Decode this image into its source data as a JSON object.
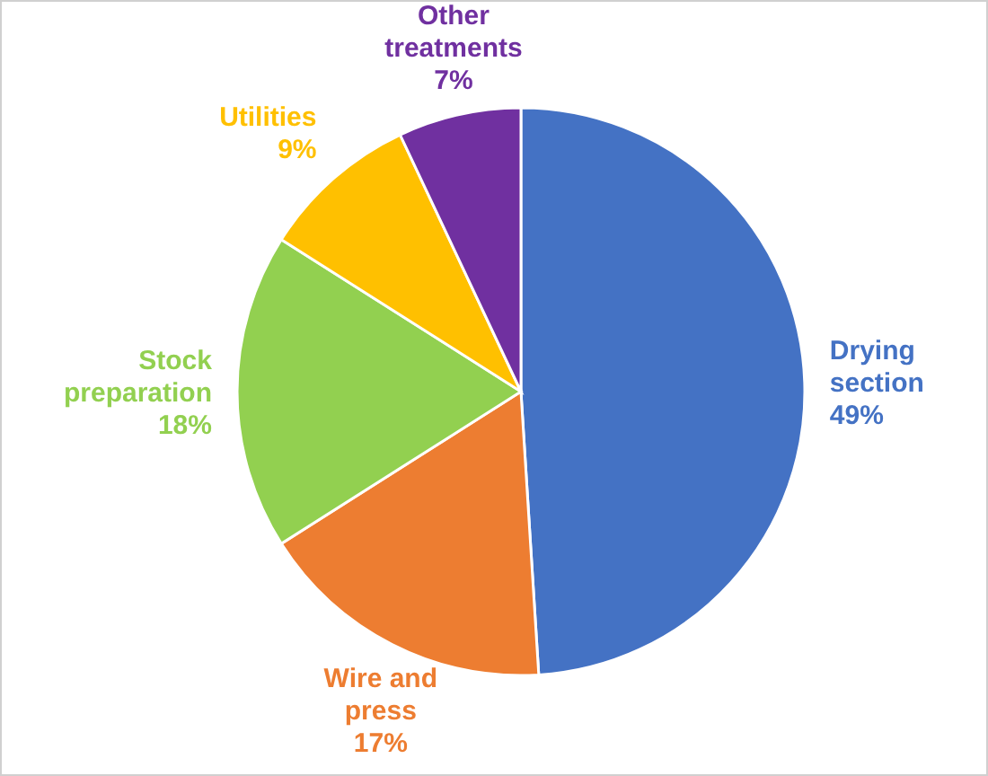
{
  "chart_data": {
    "type": "pie",
    "categories": [
      "Drying section",
      "Wire and press",
      "Stock preparation",
      "Utilities",
      "Other treatments"
    ],
    "values": [
      49,
      17,
      18,
      9,
      7
    ],
    "colors": [
      "#4472c4",
      "#ed7d31",
      "#92d050",
      "#ffc000",
      "#7030a0"
    ],
    "value_labels": [
      "49%",
      "17%",
      "18%",
      "9%",
      "7%"
    ]
  }
}
